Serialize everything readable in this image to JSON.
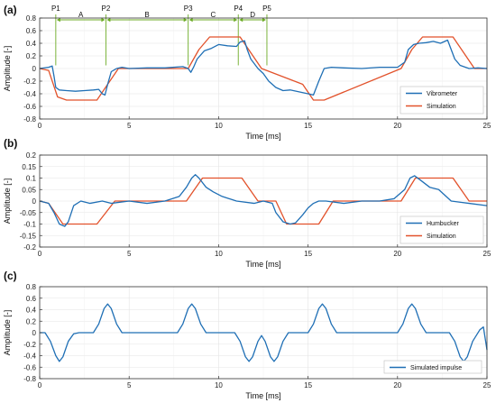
{
  "chart_data": [
    {
      "type": "line",
      "panel_label": "(a)",
      "xlabel": "Time [ms]",
      "ylabel": "Amplitude [-]",
      "xlim": [
        0,
        25
      ],
      "ylim": [
        -0.8,
        0.8
      ],
      "xticks": [
        0,
        5,
        10,
        15,
        20,
        25
      ],
      "yticks": [
        -0.8,
        -0.6,
        -0.4,
        -0.2,
        0,
        0.2,
        0.4,
        0.6,
        0.8
      ],
      "grid": true,
      "legend_position": "bottom-right",
      "series": [
        {
          "name": "Vibrometer",
          "color": "#1f6fb5",
          "x": [
            0,
            0.5,
            0.7,
            0.8,
            0.9,
            1.1,
            1.5,
            2.0,
            2.5,
            3.0,
            3.3,
            3.5,
            3.65,
            3.8,
            4.0,
            4.3,
            4.6,
            5.0,
            6.0,
            7.0,
            8.0,
            8.3,
            8.45,
            8.6,
            8.8,
            9.2,
            9.6,
            10.0,
            10.5,
            11.0,
            11.2,
            11.45,
            11.6,
            11.8,
            12.2,
            12.5,
            12.8,
            13.2,
            13.6,
            14.0,
            14.5,
            15.0,
            15.3,
            15.6,
            15.9,
            16.3,
            17.0,
            18.0,
            19.0,
            20.0,
            20.4,
            20.6,
            20.9,
            21.2,
            21.6,
            22.0,
            22.4,
            22.8,
            23.0,
            23.2,
            23.5,
            24.0,
            24.5,
            25.0
          ],
          "y": [
            0,
            0.02,
            0.04,
            -0.12,
            -0.3,
            -0.34,
            -0.35,
            -0.36,
            -0.35,
            -0.34,
            -0.33,
            -0.4,
            -0.42,
            -0.25,
            -0.05,
            0.0,
            0.02,
            0.0,
            0.01,
            0.01,
            0.03,
            0.0,
            -0.06,
            0.02,
            0.15,
            0.28,
            0.32,
            0.38,
            0.36,
            0.35,
            0.42,
            0.44,
            0.3,
            0.15,
            0.0,
            -0.08,
            -0.2,
            -0.3,
            -0.35,
            -0.34,
            -0.37,
            -0.4,
            -0.42,
            -0.2,
            0.0,
            0.02,
            0.01,
            0.0,
            0.02,
            0.02,
            0.1,
            0.3,
            0.38,
            0.4,
            0.41,
            0.43,
            0.4,
            0.45,
            0.3,
            0.15,
            0.05,
            0.0,
            0.01,
            0.0
          ]
        },
        {
          "name": "Simulation",
          "color": "#e2522b",
          "x": [
            0,
            0.5,
            1.0,
            1.5,
            3.2,
            3.8,
            4.4,
            8.3,
            8.9,
            9.5,
            11.2,
            11.8,
            12.4,
            14.7,
            15.3,
            15.9,
            20.2,
            20.8,
            21.4,
            23.1,
            23.7,
            24.3,
            25.0
          ],
          "y": [
            0,
            -0.03,
            -0.45,
            -0.5,
            -0.5,
            -0.25,
            0,
            0,
            0.3,
            0.5,
            0.5,
            0.25,
            0,
            -0.25,
            -0.5,
            -0.5,
            0,
            0.3,
            0.5,
            0.5,
            0.25,
            0,
            0
          ]
        }
      ],
      "annotations": {
        "points": [
          {
            "label": "P1",
            "x": 0.9
          },
          {
            "label": "P2",
            "x": 3.7
          },
          {
            "label": "P3",
            "x": 8.3
          },
          {
            "label": "P4",
            "x": 11.1
          },
          {
            "label": "P5",
            "x": 12.7
          }
        ],
        "spans": [
          {
            "label": "A",
            "from": 0.9,
            "to": 3.7
          },
          {
            "label": "B",
            "from": 3.7,
            "to": 8.3
          },
          {
            "label": "C",
            "from": 8.3,
            "to": 11.1
          },
          {
            "label": "D",
            "from": 11.1,
            "to": 12.7
          }
        ],
        "color": "#6cab25"
      }
    },
    {
      "type": "line",
      "panel_label": "(b)",
      "xlabel": "Time [ms]",
      "ylabel": "Amplitude [-]",
      "xlim": [
        0,
        25
      ],
      "ylim": [
        -0.2,
        0.2
      ],
      "xticks": [
        0,
        5,
        10,
        15,
        20,
        25
      ],
      "yticks": [
        -0.2,
        -0.15,
        -0.1,
        -0.05,
        0,
        0.05,
        0.1,
        0.15,
        0.2
      ],
      "grid": true,
      "legend_position": "bottom-right",
      "series": [
        {
          "name": "Humbucker",
          "color": "#1f6fb5",
          "x": [
            0,
            0.5,
            0.8,
            1.1,
            1.4,
            1.6,
            1.9,
            2.3,
            2.8,
            3.5,
            4.0,
            5.0,
            6.0,
            7.0,
            7.8,
            8.2,
            8.5,
            8.7,
            8.9,
            9.3,
            9.7,
            10.2,
            11.0,
            12.0,
            12.5,
            13.0,
            13.2,
            13.6,
            14.0,
            14.3,
            14.7,
            15.0,
            15.3,
            15.6,
            16.0,
            17.0,
            18.0,
            19.0,
            19.8,
            20.4,
            20.7,
            20.95,
            21.3,
            21.8,
            22.3,
            23.0,
            24.0,
            25.0
          ],
          "y": [
            0,
            -0.01,
            -0.05,
            -0.1,
            -0.11,
            -0.09,
            -0.02,
            0.0,
            -0.01,
            0.0,
            -0.01,
            0.0,
            -0.01,
            0.0,
            0.02,
            0.06,
            0.1,
            0.115,
            0.1,
            0.06,
            0.04,
            0.02,
            0.0,
            -0.01,
            0.0,
            -0.01,
            -0.05,
            -0.09,
            -0.1,
            -0.095,
            -0.06,
            -0.03,
            -0.01,
            0.0,
            0.0,
            -0.01,
            0.0,
            0.0,
            0.01,
            0.05,
            0.1,
            0.11,
            0.09,
            0.06,
            0.05,
            0.0,
            -0.01,
            -0.02
          ]
        },
        {
          "name": "Simulation",
          "color": "#e2522b",
          "x": [
            0,
            0.5,
            1.3,
            3.2,
            4.2,
            8.2,
            9.1,
            11.3,
            12.2,
            13.2,
            13.8,
            15.6,
            16.4,
            20.2,
            21.0,
            23.1,
            24.0,
            25.0
          ],
          "y": [
            0,
            -0.01,
            -0.1,
            -0.1,
            0,
            0,
            0.1,
            0.1,
            0,
            0,
            -0.1,
            -0.1,
            0,
            0,
            0.1,
            0.1,
            0,
            0
          ]
        }
      ]
    },
    {
      "type": "line",
      "panel_label": "(c)",
      "xlabel": "Time [ms]",
      "ylabel": "Amplitude [-]",
      "xlim": [
        0,
        25
      ],
      "ylim": [
        -0.8,
        0.8
      ],
      "xticks": [
        0,
        5,
        10,
        15,
        20,
        25
      ],
      "yticks": [
        -0.8,
        -0.6,
        -0.4,
        -0.2,
        0,
        0.2,
        0.4,
        0.6,
        0.8
      ],
      "grid": true,
      "legend_position": "bottom-right",
      "series": [
        {
          "name": "Simulated impulse",
          "color": "#1f6fb5",
          "x": [
            0,
            0.3,
            0.6,
            0.9,
            1.1,
            1.3,
            1.6,
            1.9,
            2.2,
            3.0,
            3.3,
            3.6,
            3.8,
            4.0,
            4.3,
            4.6,
            7.7,
            8.0,
            8.3,
            8.5,
            8.7,
            9.0,
            9.3,
            10.9,
            11.2,
            11.5,
            11.7,
            11.9,
            12.2,
            12.4,
            12.6,
            12.9,
            13.1,
            13.3,
            13.6,
            13.9,
            15.0,
            15.3,
            15.6,
            15.8,
            16.0,
            16.3,
            16.6,
            20.0,
            20.3,
            20.6,
            20.8,
            21.0,
            21.3,
            21.6,
            22.9,
            23.2,
            23.5,
            23.7,
            23.9,
            24.2,
            24.4,
            24.6,
            24.8,
            25.0
          ],
          "y": [
            0,
            0,
            -0.15,
            -0.4,
            -0.5,
            -0.42,
            -0.15,
            -0.02,
            0,
            0,
            0.15,
            0.42,
            0.5,
            0.42,
            0.15,
            0,
            0,
            0.15,
            0.42,
            0.5,
            0.42,
            0.15,
            0,
            0,
            -0.15,
            -0.42,
            -0.5,
            -0.42,
            -0.15,
            -0.05,
            -0.15,
            -0.42,
            -0.5,
            -0.42,
            -0.15,
            0,
            0,
            0.15,
            0.42,
            0.5,
            0.42,
            0.15,
            0,
            0,
            0.15,
            0.42,
            0.5,
            0.42,
            0.15,
            0,
            0,
            -0.15,
            -0.42,
            -0.5,
            -0.42,
            -0.15,
            -0.05,
            0.05,
            0.1,
            -0.3
          ]
        }
      ]
    }
  ]
}
